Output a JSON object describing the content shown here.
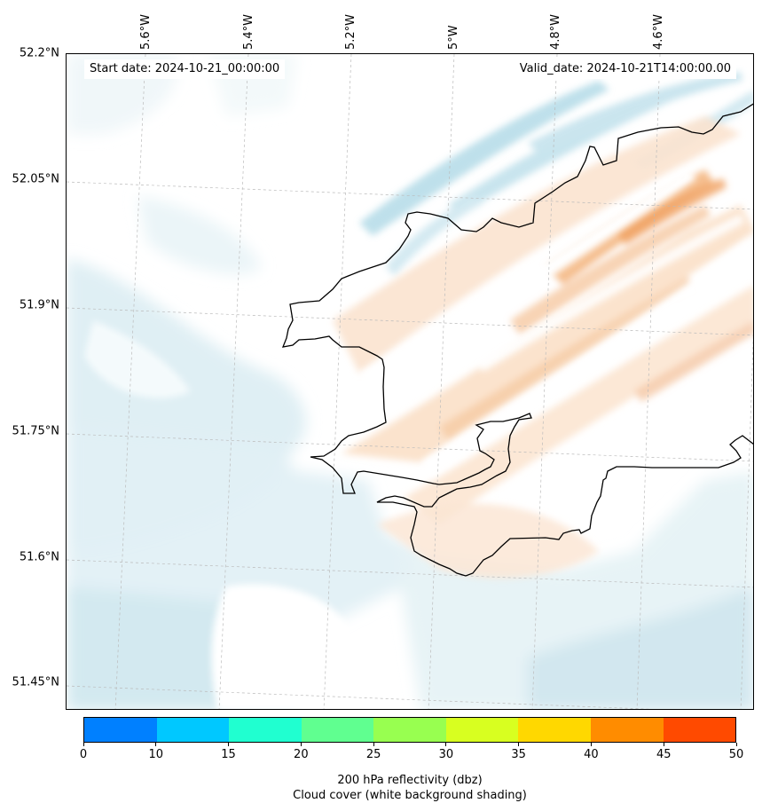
{
  "map": {
    "start_date": "Start date: 2024-10-21_00:00:00",
    "valid_date": "Valid_date: 2024-10-21T14:00:00.00",
    "lat_labels": [
      "52.2°N",
      "52.05°N",
      "51.9°N",
      "51.75°N",
      "51.6°N",
      "51.45°N"
    ],
    "lon_labels": [
      "5.6°W",
      "5.4°W",
      "5.2°W",
      "5°W",
      "4.8°W",
      "4.6°W"
    ],
    "coast_color": "#000000",
    "cloud_color": "#add8e6",
    "reflectivity_shading_color": "#f4a460"
  },
  "colorbar": {
    "ticks": [
      "0",
      "10",
      "15",
      "20",
      "25",
      "30",
      "35",
      "40",
      "45",
      "50"
    ],
    "colors": [
      "#0080ff",
      "#00c8ff",
      "#20ffd0",
      "#60ff90",
      "#98ff50",
      "#d8ff20",
      "#ffd800",
      "#ff8c00",
      "#ff4a00"
    ],
    "label_line1": "200 hPa reflectivity (dbz)",
    "label_line2": "Cloud cover (white background shading)"
  }
}
